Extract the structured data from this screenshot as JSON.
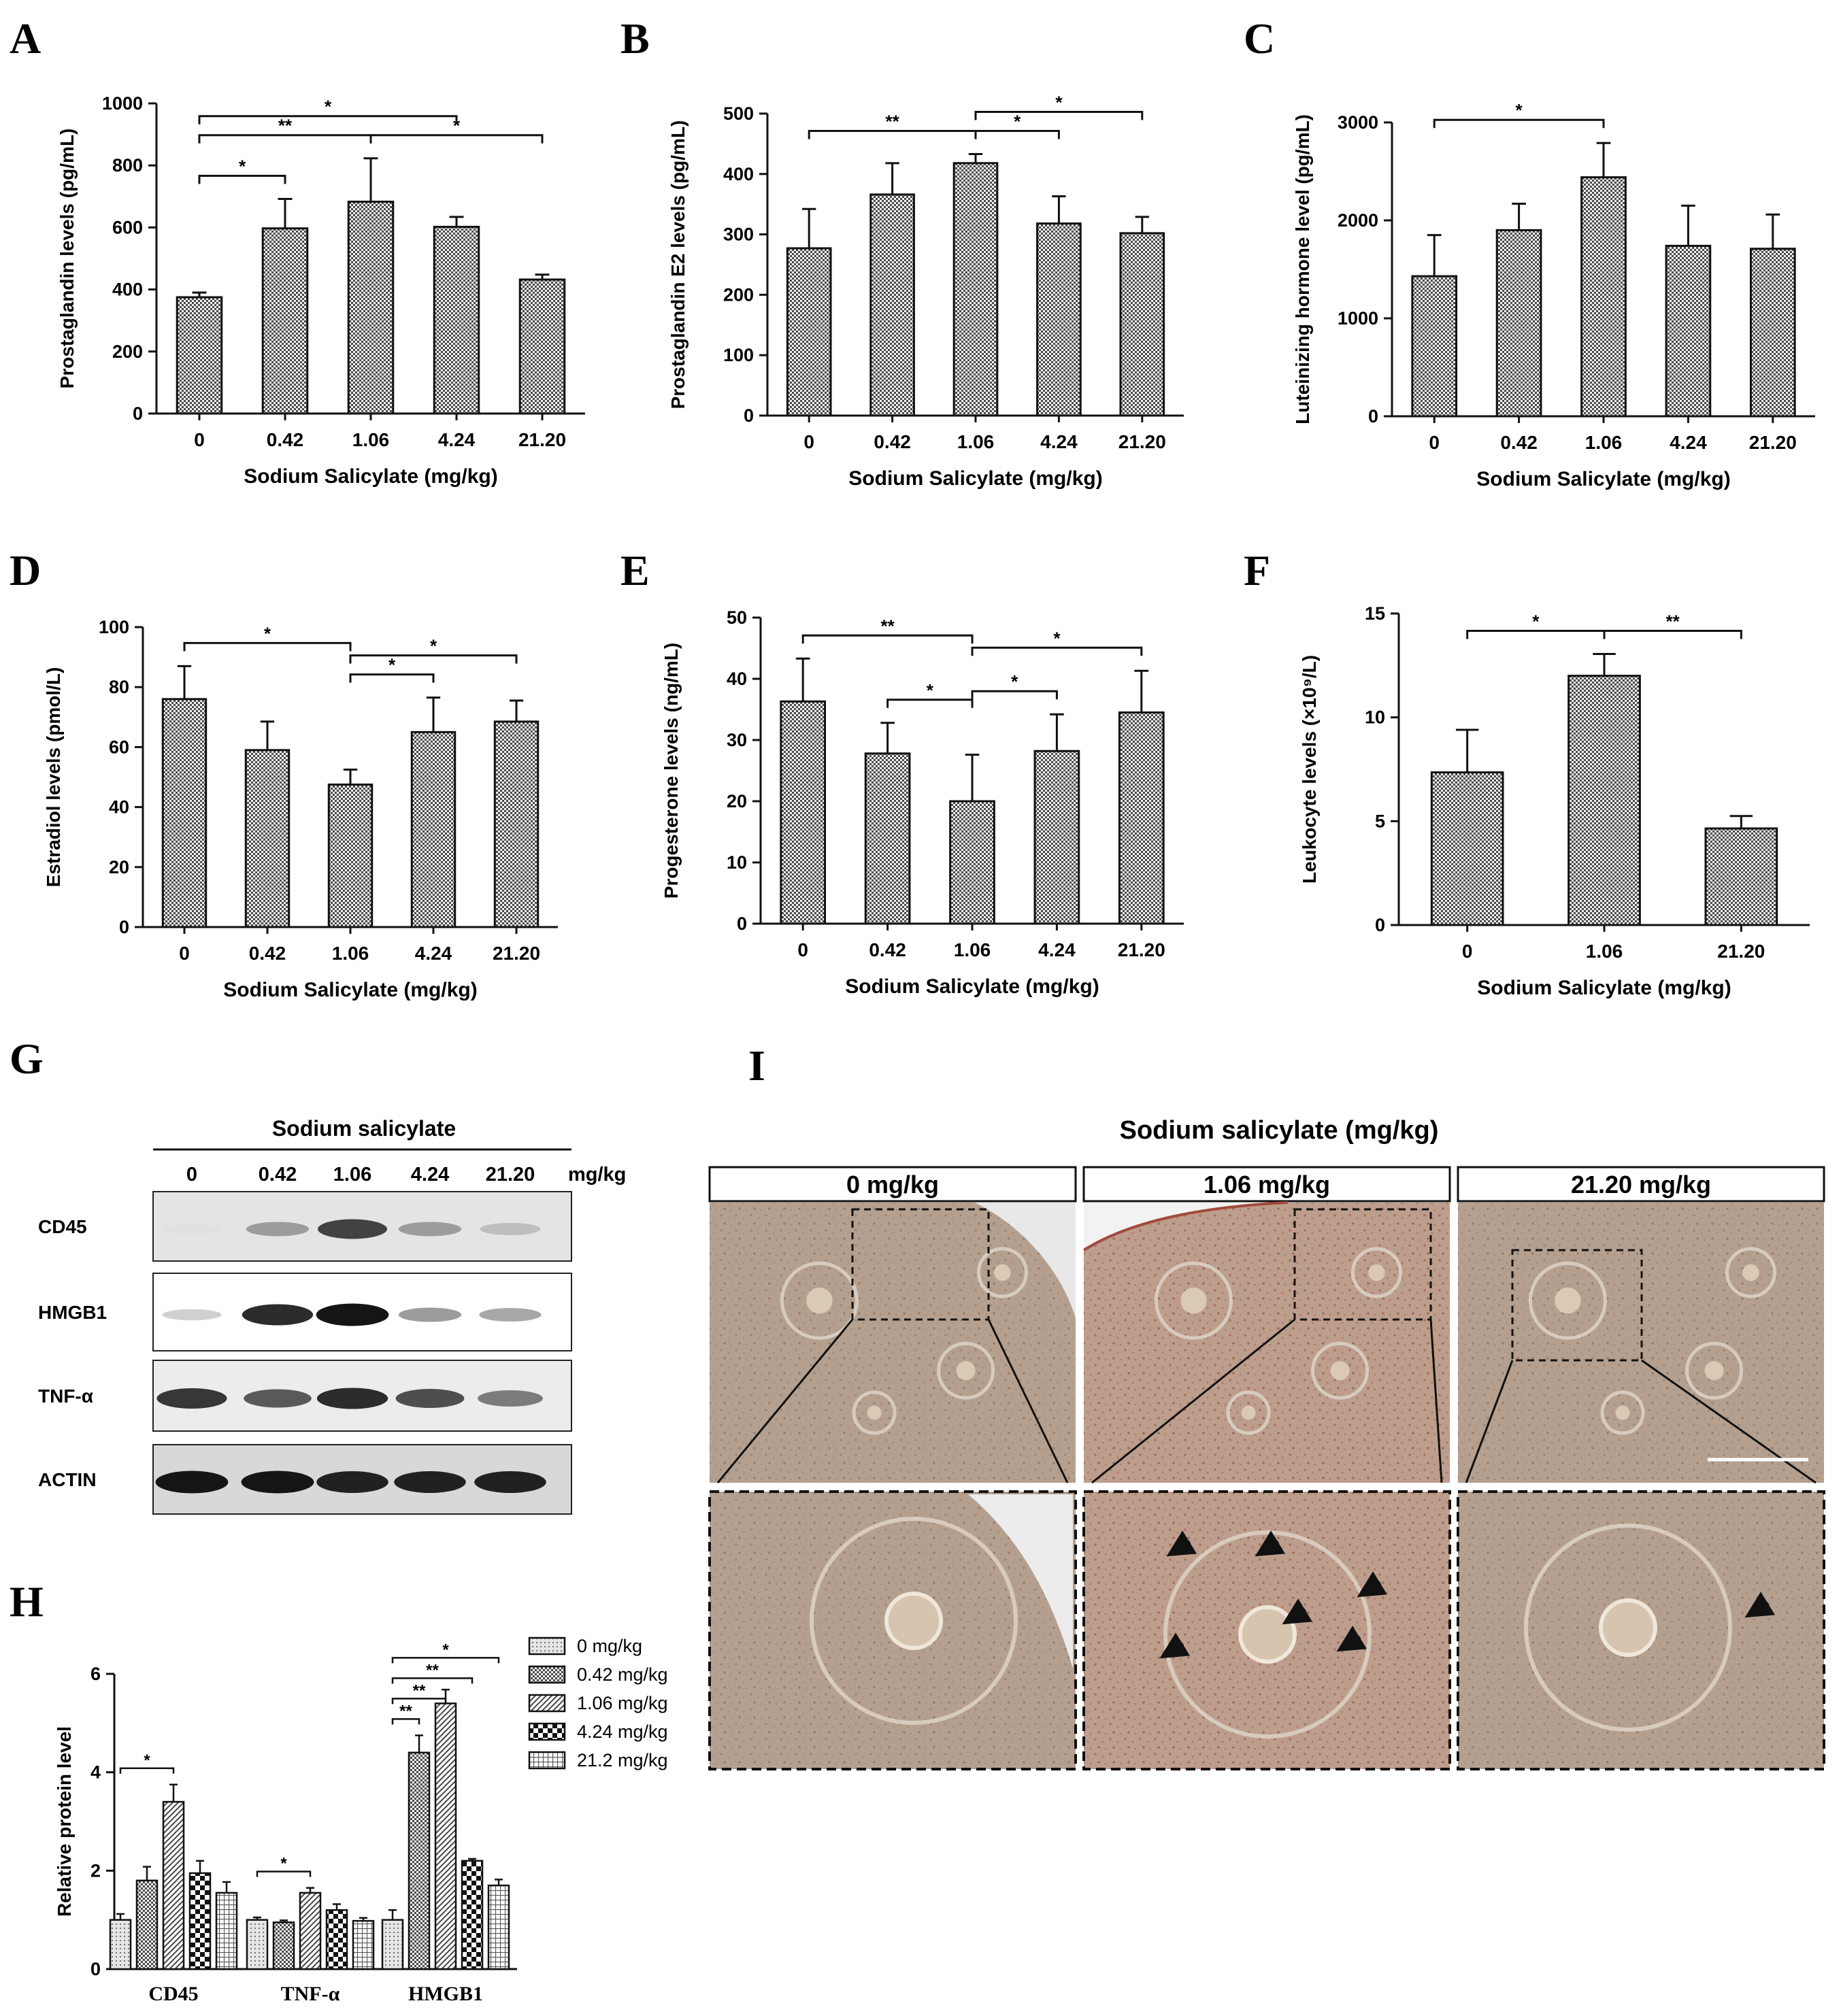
{
  "figure": {
    "bar_fill_color": "#8a8a8a",
    "axis_color": "#111111",
    "charts_bar": [
      {
        "letter": "A",
        "type": "bar",
        "categories": [
          "0",
          "0.42",
          "1.06",
          "4.24",
          "21.20"
        ],
        "values": [
          375,
          597,
          683,
          602,
          432
        ],
        "errors": [
          15,
          95,
          140,
          32,
          16
        ],
        "xlabel": "Sodium Salicylate (mg/kg)",
        "ylabel": "Prostaglandin levels (pg/mL)",
        "ylim": [
          0,
          1000
        ],
        "yticks": [
          "0",
          "200",
          "400",
          "600",
          "800",
          "1000"
        ],
        "brackets": [
          {
            "from": 0,
            "to": 3,
            "label": "*"
          },
          {
            "from": 0,
            "to": 2,
            "label": "**"
          },
          {
            "from": 0,
            "to": 1,
            "label": "*"
          },
          {
            "from": 2,
            "to": 4,
            "label": "*"
          }
        ]
      },
      {
        "letter": "B",
        "type": "bar",
        "categories": [
          "0",
          "0.42",
          "1.06",
          "4.24",
          "21.20"
        ],
        "values": [
          277,
          366,
          418,
          318,
          302
        ],
        "errors": [
          65,
          52,
          15,
          45,
          27
        ],
        "xlabel": "Sodium Salicylate (mg/kg)",
        "ylabel": "Prostaglandin E2  levels (pg/mL)",
        "ylim": [
          0,
          500
        ],
        "yticks": [
          "0",
          "100",
          "200",
          "300",
          "400",
          "500"
        ],
        "brackets": [
          {
            "from": 0,
            "to": 2,
            "label": "**"
          },
          {
            "from": 2,
            "to": 3,
            "label": "*"
          },
          {
            "from": 2,
            "to": 4,
            "label": "*"
          }
        ]
      },
      {
        "letter": "C",
        "type": "bar",
        "categories": [
          "0",
          "0.42",
          "1.06",
          "4.24",
          "21.20"
        ],
        "values": [
          1430,
          1900,
          2440,
          1740,
          1710
        ],
        "errors": [
          420,
          270,
          350,
          410,
          350
        ],
        "xlabel": "Sodium Salicylate (mg/kg)",
        "ylabel": "Luteinizing hormone level (pg/mL)",
        "ylim": [
          0,
          3000
        ],
        "yticks": [
          "0",
          "1000",
          "2000",
          "3000"
        ],
        "brackets": [
          {
            "from": 0,
            "to": 2,
            "label": "*"
          }
        ]
      },
      {
        "letter": "D",
        "type": "bar",
        "categories": [
          "0",
          "0.42",
          "1.06",
          "4.24",
          "21.20"
        ],
        "values": [
          76,
          59,
          47.5,
          65,
          68.5
        ],
        "errors": [
          11,
          9.5,
          5,
          11.5,
          7
        ],
        "xlabel": "Sodium Salicylate (mg/kg)",
        "ylabel": "Estradiol levels (pmol/L)",
        "ylim": [
          0,
          100
        ],
        "yticks": [
          "0",
          "20",
          "40",
          "60",
          "80",
          "100"
        ],
        "brackets": [
          {
            "from": 0,
            "to": 2,
            "label": "*"
          },
          {
            "from": 2,
            "to": 4,
            "label": "*"
          },
          {
            "from": 2,
            "to": 3,
            "label": "*"
          }
        ]
      },
      {
        "letter": "E",
        "type": "bar",
        "categories": [
          "0",
          "0.42",
          "1.06",
          "4.24",
          "21.20"
        ],
        "values": [
          36.3,
          27.8,
          20,
          28.2,
          34.5
        ],
        "errors": [
          7,
          5,
          7.6,
          6,
          6.8
        ],
        "xlabel": "Sodium Salicylate (mg/kg)",
        "ylabel": "Progesterone levels (ng/mL)",
        "ylim": [
          0,
          50
        ],
        "yticks": [
          "0",
          "10",
          "20",
          "30",
          "40",
          "50"
        ],
        "brackets": [
          {
            "from": 0,
            "to": 2,
            "label": "**"
          },
          {
            "from": 2,
            "to": 4,
            "label": "*"
          },
          {
            "from": 1,
            "to": 2,
            "label": "*"
          },
          {
            "from": 2,
            "to": 3,
            "label": "*"
          }
        ]
      },
      {
        "letter": "F",
        "type": "bar",
        "categories": [
          "0",
          "1.06",
          "21.20"
        ],
        "values": [
          7.35,
          12,
          4.65
        ],
        "errors": [
          2.05,
          1.05,
          0.6
        ],
        "xlabel": "Sodium Salicylate (mg/kg)",
        "ylabel": "Leukocyte levels (×10⁹/L)",
        "ylim": [
          0,
          15
        ],
        "yticks": [
          "0",
          "5",
          "10",
          "15"
        ],
        "brackets": [
          {
            "from": 0,
            "to": 1,
            "label": "*"
          },
          {
            "from": 1,
            "to": 2,
            "label": "**"
          }
        ]
      }
    ],
    "western_blot": {
      "letter": "G",
      "header": "Sodium salicylate",
      "lanes": [
        "0",
        "0.42",
        "1.06",
        "4.24",
        "21.20"
      ],
      "unit": "mg/kg",
      "rows": [
        {
          "label": "CD45",
          "intensities": [
            0.05,
            0.35,
            0.75,
            0.35,
            0.2
          ],
          "background": "#e4e4e4"
        },
        {
          "label": "HMGB1",
          "intensities": [
            0.12,
            0.85,
            0.95,
            0.35,
            0.3
          ],
          "background": "#ffffff"
        },
        {
          "label": "TNF-α",
          "intensities": [
            0.8,
            0.65,
            0.85,
            0.7,
            0.5
          ],
          "background": "#ececec"
        },
        {
          "label": "ACTIN",
          "intensities": [
            0.95,
            0.95,
            0.9,
            0.9,
            0.9
          ],
          "background": "#d8d8d8"
        }
      ]
    },
    "chart_data": {
      "letter": "H",
      "type": "bar",
      "categories": [
        "CD45",
        "TNF-α",
        "HMGB1"
      ],
      "ylabel": "Relative protein level",
      "ylim": [
        0,
        6
      ],
      "yticks": [
        "0",
        "2",
        "4",
        "6"
      ],
      "series": [
        {
          "name": "0 mg/kg",
          "values": [
            1.0,
            1.0,
            1.0
          ],
          "errors": [
            0.12,
            0.05,
            0.2
          ]
        },
        {
          "name": "0.42 mg/kg",
          "values": [
            1.8,
            0.95,
            4.4
          ],
          "errors": [
            0.28,
            0.04,
            0.35
          ]
        },
        {
          "name": "1.06 mg/kg",
          "values": [
            3.4,
            1.55,
            5.4
          ],
          "errors": [
            0.35,
            0.1,
            0.28
          ]
        },
        {
          "name": "4.24 mg/kg",
          "values": [
            1.95,
            1.2,
            2.2
          ],
          "errors": [
            0.25,
            0.12,
            0.04
          ]
        },
        {
          "name": "21.2 mg/kg",
          "values": [
            1.55,
            0.98,
            1.7
          ],
          "errors": [
            0.22,
            0.06,
            0.12
          ]
        }
      ],
      "brackets": [
        {
          "group": 0,
          "from": 0,
          "to": 2,
          "label": "*"
        },
        {
          "group": 1,
          "from": 0,
          "to": 2,
          "label": "*"
        },
        {
          "group": 2,
          "from": 0,
          "to": 1,
          "label": "**"
        },
        {
          "group": 2,
          "from": 0,
          "to": 2,
          "label": "**"
        },
        {
          "group": 2,
          "from": 0,
          "to": 3,
          "label": "**"
        },
        {
          "group": 2,
          "from": 0,
          "to": 4,
          "label": "*"
        }
      ]
    },
    "histology": {
      "letter": "I",
      "title": "Sodium salicylate (mg/kg)",
      "columns": [
        {
          "label": "0 mg/kg",
          "arrows": 0
        },
        {
          "label": "1.06 mg/kg",
          "arrows": 6
        },
        {
          "label": "21.20 mg/kg",
          "arrows": 1
        }
      ],
      "tissue_color": "#b7a08f",
      "stain_color": "#b0695a"
    }
  }
}
